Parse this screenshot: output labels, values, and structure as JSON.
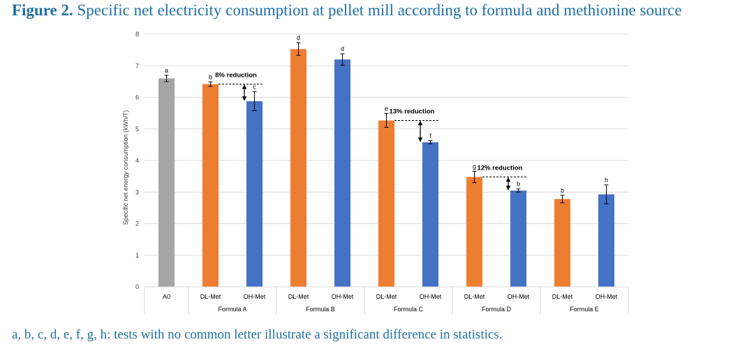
{
  "figure": {
    "label": "Figure 2.",
    "title": "Specific net electricity consumption at pellet mill according to formula and methionine source",
    "footnote": "a, b, c, d, e, f, g, h: tests with no common letter illustrate a significant difference in statistics."
  },
  "chart_data": {
    "type": "bar",
    "title": "Specific net electricity consumption at pellet mill according to formula and methionine source",
    "xlabel": "",
    "ylabel": "Specific net energy consumption (kWh/T)",
    "ylim": [
      0,
      8
    ],
    "yticks": [
      0,
      1,
      2,
      3,
      4,
      5,
      6,
      7,
      8
    ],
    "grid": true,
    "colors": {
      "A0": "#a5a5a5",
      "DL-Met": "#ed7d31",
      "OH-Met": "#4472c4"
    },
    "bars": [
      {
        "group": "",
        "label": "A0",
        "value": 6.6,
        "error": 0.1,
        "letter": "a"
      },
      {
        "group": "Formula A",
        "label": "DL-Met",
        "value": 6.42,
        "error": 0.07,
        "letter": "b"
      },
      {
        "group": "Formula A",
        "label": "OH-Met",
        "value": 5.88,
        "error": 0.3,
        "letter": "c"
      },
      {
        "group": "Formula B",
        "label": "DL-Met",
        "value": 7.53,
        "error": 0.2,
        "letter": "d"
      },
      {
        "group": "Formula B",
        "label": "OH-Met",
        "value": 7.2,
        "error": 0.18,
        "letter": "d"
      },
      {
        "group": "Formula C",
        "label": "DL-Met",
        "value": 5.27,
        "error": 0.22,
        "letter": "e"
      },
      {
        "group": "Formula C",
        "label": "OH-Met",
        "value": 4.58,
        "error": 0.05,
        "letter": "f"
      },
      {
        "group": "Formula D",
        "label": "DL-Met",
        "value": 3.48,
        "error": 0.18,
        "letter": "g"
      },
      {
        "group": "Formula D",
        "label": "OH-Met",
        "value": 3.05,
        "error": 0.05,
        "letter": "b"
      },
      {
        "group": "Formula E",
        "label": "DL-Met",
        "value": 2.78,
        "error": 0.12,
        "letter": "b"
      },
      {
        "group": "Formula E",
        "label": "OH-Met",
        "value": 2.93,
        "error": 0.3,
        "letter": "h"
      }
    ],
    "groups": [
      "Formula A",
      "Formula B",
      "Formula C",
      "Formula D",
      "Formula E"
    ],
    "annotations": [
      {
        "text": "8% reduction",
        "from_bar": 1,
        "to_bar": 2
      },
      {
        "text": "13% reduction",
        "from_bar": 5,
        "to_bar": 6
      },
      {
        "text": "12% reduction",
        "from_bar": 7,
        "to_bar": 8
      }
    ]
  }
}
